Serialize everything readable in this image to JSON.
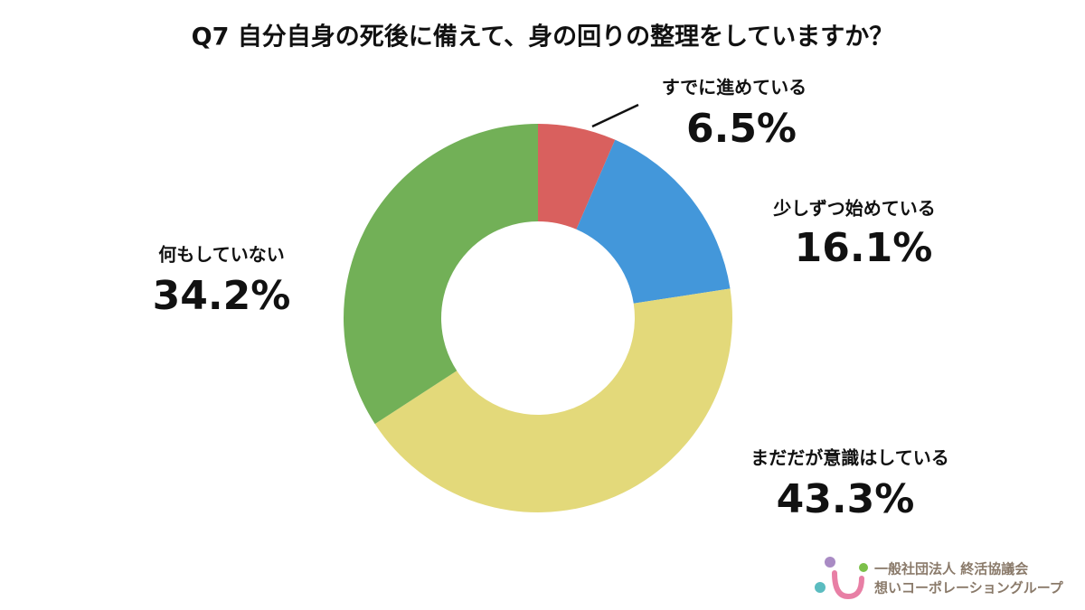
{
  "chart_data": {
    "type": "donut",
    "title": "Q7 自分自身の死後に備えて、身の回りの整理をしていますか？",
    "categories": [
      "すでに進めている",
      "少しずつ始めている",
      "まだだが意識はしている",
      "何もしていない"
    ],
    "values": [
      6.5,
      16.1,
      43.3,
      34.2
    ],
    "value_labels": [
      "6.5%",
      "16.1%",
      "43.3%",
      "34.2%"
    ],
    "colors": [
      "#d9605e",
      "#4397da",
      "#e3d97a",
      "#72b057"
    ]
  },
  "logo": {
    "line1": "一般社団法人 終活協議会",
    "line2": "想いコーポレーショングループ"
  }
}
